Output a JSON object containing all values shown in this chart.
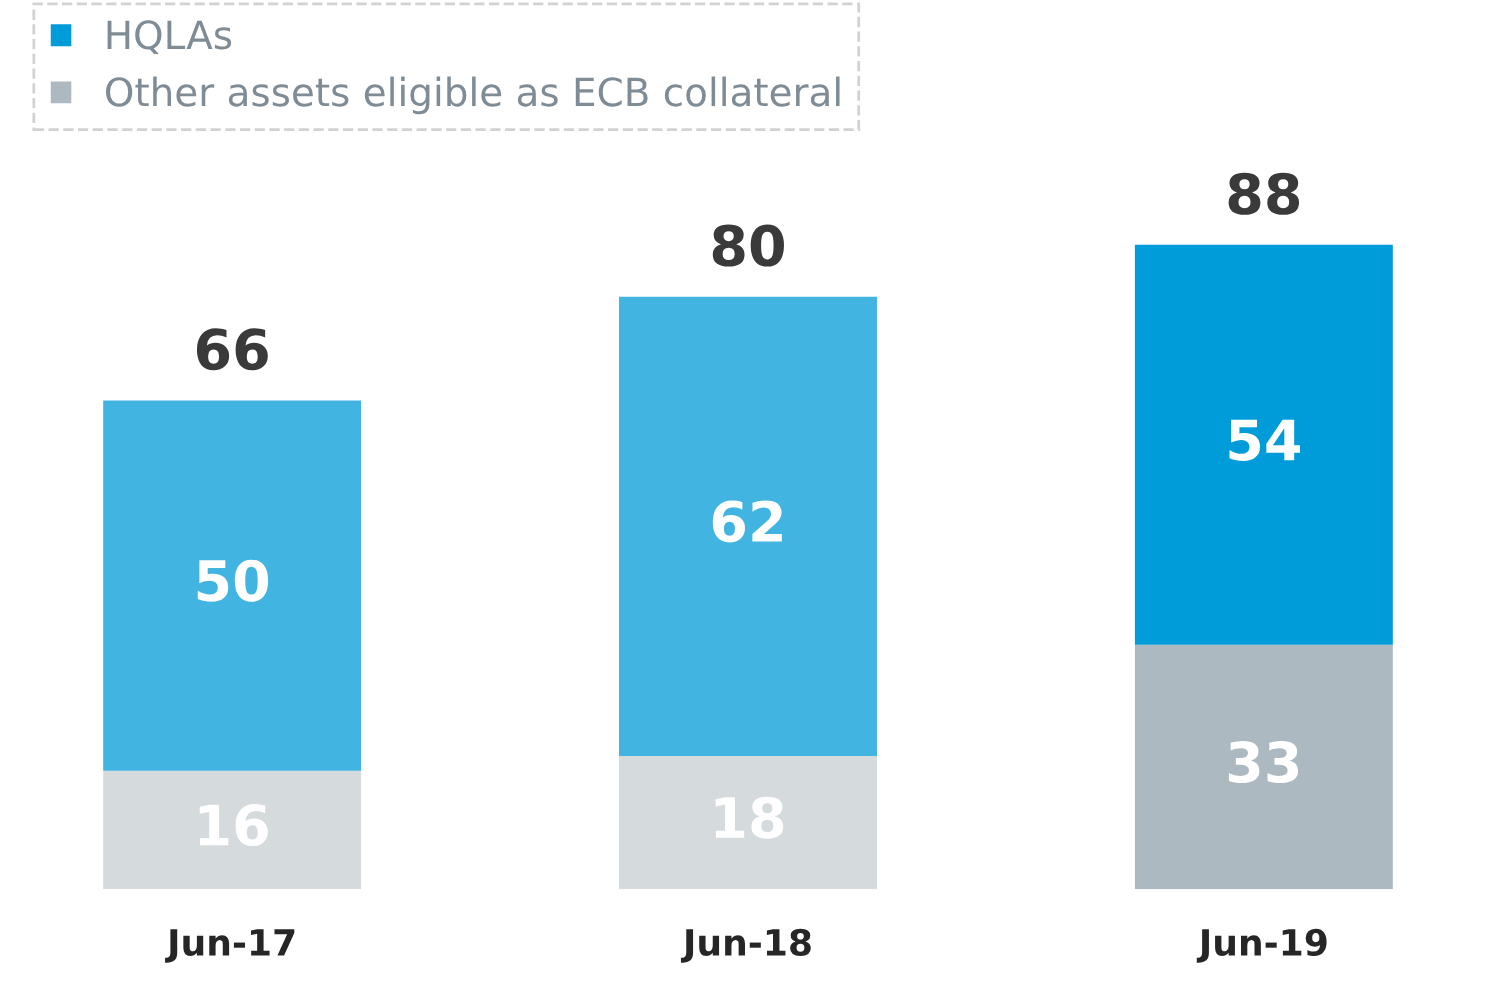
{
  "chart_data": {
    "type": "bar",
    "stacked": true,
    "categories": [
      "Jun-17",
      "Jun-18",
      "Jun-19"
    ],
    "series": [
      {
        "name": "Other assets eligible as ECB collateral",
        "color": "#adb9c1",
        "colors": [
          "#d5dadd",
          "#d5dadd",
          "#adb9c1"
        ],
        "values": [
          16,
          18,
          33
        ]
      },
      {
        "name": "HQLAs",
        "color": "#009bd9",
        "colors": [
          "#41b4e1",
          "#41b4e1",
          "#009bd9"
        ],
        "values": [
          50,
          62,
          54
        ]
      }
    ],
    "data_labels": true,
    "totals": [
      "66",
      "80",
      "88"
    ],
    "legend": "top left",
    "grid": false
  }
}
